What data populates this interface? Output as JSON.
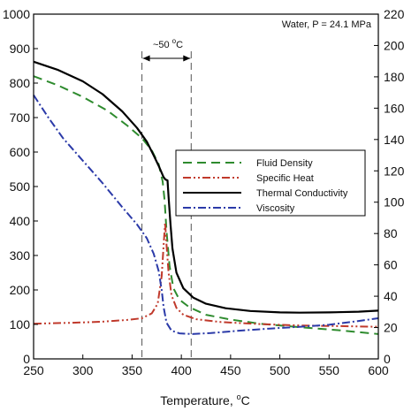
{
  "chart_data": {
    "type": "line",
    "xlabel": "Temperature, ",
    "xlabel_unit": "C",
    "xlim": [
      250,
      600
    ],
    "x_ticks": [
      "250",
      "300",
      "350",
      "400",
      "450",
      "500",
      "550",
      "600"
    ],
    "ylim_left": [
      0,
      1000
    ],
    "ylim_right": [
      0,
      220
    ],
    "y_ticks_left": [
      "0",
      "100",
      "200",
      "300",
      "400",
      "500",
      "600",
      "700",
      "800",
      "900",
      "1000"
    ],
    "y_ticks_right": [
      "0",
      "20",
      "40",
      "60",
      "80",
      "100",
      "120",
      "140",
      "160",
      "180",
      "200",
      "220"
    ],
    "annotation": "Water, P = 24.1 MPa",
    "interval": {
      "label": "~50 ",
      "label_unit": "C",
      "x_start": 360,
      "x_end": 410
    },
    "legend_position": "center-right",
    "series": [
      {
        "name": "Fluid Density",
        "axis": "left",
        "color": "#2e8b2e",
        "dash": "10,6",
        "points": [
          [
            250,
            820
          ],
          [
            275,
            793
          ],
          [
            300,
            760
          ],
          [
            325,
            720
          ],
          [
            345,
            677
          ],
          [
            360,
            640
          ],
          [
            370,
            605
          ],
          [
            377,
            565
          ],
          [
            381,
            515
          ],
          [
            383,
            460
          ],
          [
            385,
            370
          ],
          [
            388,
            270
          ],
          [
            392,
            205
          ],
          [
            398,
            172
          ],
          [
            408,
            150
          ],
          [
            425,
            128
          ],
          [
            450,
            114
          ],
          [
            480,
            102
          ],
          [
            520,
            92
          ],
          [
            560,
            83
          ],
          [
            600,
            72
          ]
        ]
      },
      {
        "name": "Specific Heat",
        "axis": "left",
        "color": "#c0392b",
        "dash": "9,3,2,3,2,3",
        "points": [
          [
            250,
            102
          ],
          [
            290,
            105
          ],
          [
            320,
            108
          ],
          [
            345,
            113
          ],
          [
            360,
            118
          ],
          [
            370,
            132
          ],
          [
            376,
            160
          ],
          [
            380,
            240
          ],
          [
            382,
            330
          ],
          [
            383.5,
            395
          ],
          [
            385,
            330
          ],
          [
            387,
            250
          ],
          [
            390,
            185
          ],
          [
            395,
            148
          ],
          [
            402,
            128
          ],
          [
            415,
            115
          ],
          [
            440,
            107
          ],
          [
            480,
            101
          ],
          [
            520,
            97
          ],
          [
            560,
            95
          ],
          [
            600,
            93
          ]
        ]
      },
      {
        "name": "Thermal Conductivity",
        "axis": "left",
        "color": "#000000",
        "dash": "",
        "points": [
          [
            250,
            862
          ],
          [
            275,
            838
          ],
          [
            300,
            805
          ],
          [
            320,
            768
          ],
          [
            340,
            718
          ],
          [
            355,
            670
          ],
          [
            365,
            630
          ],
          [
            372,
            590
          ],
          [
            377,
            560
          ],
          [
            380,
            540
          ],
          [
            382,
            527
          ],
          [
            384,
            520
          ],
          [
            386,
            518
          ],
          [
            387,
            470
          ],
          [
            389,
            390
          ],
          [
            391,
            320
          ],
          [
            395,
            250
          ],
          [
            402,
            205
          ],
          [
            412,
            178
          ],
          [
            425,
            160
          ],
          [
            445,
            147
          ],
          [
            470,
            139
          ],
          [
            500,
            135
          ],
          [
            520,
            134
          ],
          [
            550,
            135
          ],
          [
            580,
            137
          ],
          [
            600,
            140
          ]
        ]
      },
      {
        "name": "Viscosity",
        "axis": "left",
        "color": "#2b3aa8",
        "dash": "9,3,2,3",
        "points": [
          [
            250,
            765
          ],
          [
            265,
            700
          ],
          [
            280,
            640
          ],
          [
            300,
            575
          ],
          [
            320,
            510
          ],
          [
            340,
            440
          ],
          [
            355,
            390
          ],
          [
            365,
            350
          ],
          [
            372,
            305
          ],
          [
            377,
            255
          ],
          [
            380,
            200
          ],
          [
            382,
            150
          ],
          [
            385,
            105
          ],
          [
            390,
            82
          ],
          [
            398,
            74
          ],
          [
            410,
            72
          ],
          [
            430,
            75
          ],
          [
            460,
            82
          ],
          [
            490,
            88
          ],
          [
            520,
            93
          ],
          [
            550,
            99
          ],
          [
            580,
            110
          ],
          [
            600,
            118
          ]
        ]
      }
    ]
  }
}
